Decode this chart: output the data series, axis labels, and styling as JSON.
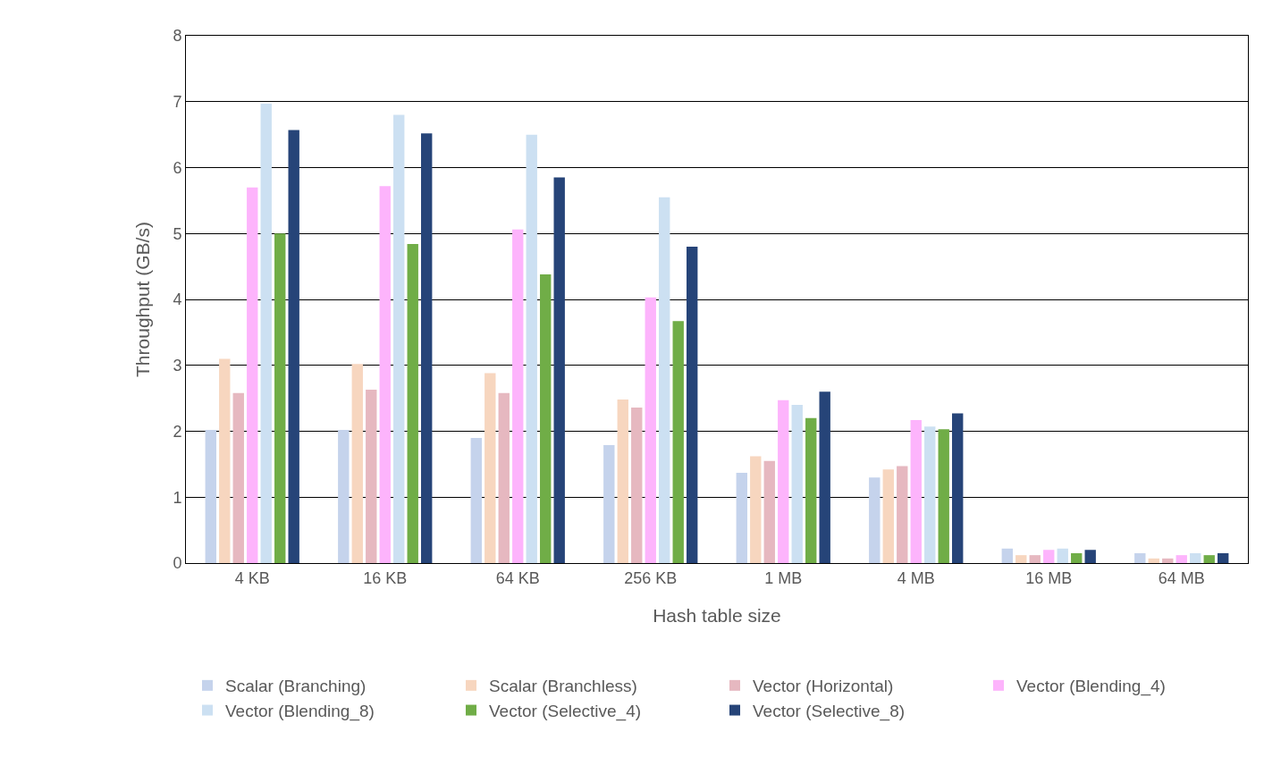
{
  "chart_data": {
    "type": "bar",
    "xlabel": "Hash table size",
    "ylabel": "Throughput (GB/s)",
    "categories": [
      "4 KB",
      "16 KB",
      "64 KB",
      "256 KB",
      "1 MB",
      "4 MB",
      "16 MB",
      "64 MB"
    ],
    "series": [
      {
        "name": "Scalar (Branching)",
        "color": "#c5d3ec",
        "values": [
          2.02,
          2.02,
          1.9,
          1.79,
          1.37,
          1.3,
          0.22,
          0.15
        ]
      },
      {
        "name": "Scalar (Branchless)",
        "color": "#f7d6bf",
        "values": [
          3.1,
          3.02,
          2.88,
          2.48,
          1.62,
          1.42,
          0.12,
          0.07
        ]
      },
      {
        "name": "Vector (Horizontal)",
        "color": "#e6b8c0",
        "values": [
          2.58,
          2.63,
          2.58,
          2.36,
          1.55,
          1.47,
          0.12,
          0.07
        ]
      },
      {
        "name": "Vector (Blending_4)",
        "color": "#fdb4fc",
        "values": [
          5.7,
          5.72,
          5.06,
          4.03,
          2.47,
          2.17,
          0.2,
          0.12
        ]
      },
      {
        "name": "Vector (Blending_8)",
        "color": "#cce0f2",
        "values": [
          6.97,
          6.8,
          6.5,
          5.55,
          2.4,
          2.07,
          0.22,
          0.15
        ]
      },
      {
        "name": "Vector (Selective_4)",
        "color": "#70ad47",
        "values": [
          5.0,
          4.84,
          4.38,
          3.67,
          2.2,
          2.03,
          0.15,
          0.12
        ]
      },
      {
        "name": "Vector (Selective_8)",
        "color": "#264478",
        "values": [
          6.57,
          6.52,
          5.85,
          4.8,
          2.6,
          2.27,
          0.2,
          0.15
        ]
      }
    ],
    "ylim": [
      0,
      8
    ],
    "yticks": [
      0,
      1,
      2,
      3,
      4,
      5,
      6,
      7,
      8
    ],
    "grid": "y",
    "legend": "bottom"
  }
}
